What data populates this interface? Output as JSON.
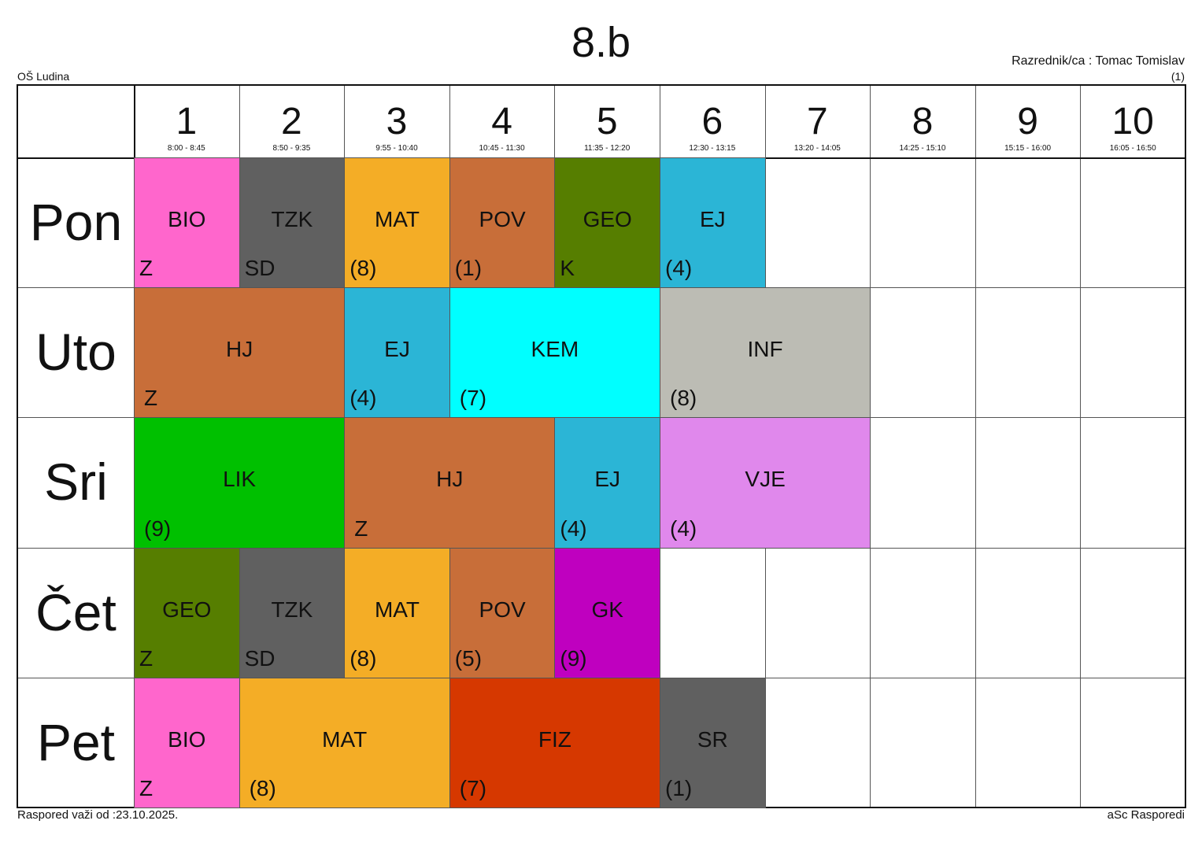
{
  "header": {
    "title": "8.b",
    "school": "OŠ Ludina",
    "teacher": "Razrednik/ca : Tomac Tomislav",
    "page_number": "(1)"
  },
  "footer": {
    "valid_from": "Raspored važi od :23.10.2025.",
    "software": "aSc Rasporedi"
  },
  "periods": [
    {
      "number": "1",
      "time": "8:00 - 8:45"
    },
    {
      "number": "2",
      "time": "8:50 - 9:35"
    },
    {
      "number": "3",
      "time": "9:55 - 10:40"
    },
    {
      "number": "4",
      "time": "10:45 - 11:30"
    },
    {
      "number": "5",
      "time": "11:35 - 12:20"
    },
    {
      "number": "6",
      "time": "12:30 - 13:15"
    },
    {
      "number": "7",
      "time": "13:20 - 14:05"
    },
    {
      "number": "8",
      "time": "14:25 - 15:10"
    },
    {
      "number": "9",
      "time": "15:15 - 16:00"
    },
    {
      "number": "10",
      "time": "16:05 - 16:50"
    }
  ],
  "days": [
    "Pon",
    "Uto",
    "Sri",
    "Čet",
    "Pet"
  ],
  "lessons": [
    {
      "day": 0,
      "start": 1,
      "span": 1,
      "subject": "BIO",
      "room": "Z",
      "color": "#ff66cc"
    },
    {
      "day": 0,
      "start": 2,
      "span": 1,
      "subject": "TZK",
      "room": "SD",
      "color": "#606060"
    },
    {
      "day": 0,
      "start": 3,
      "span": 1,
      "subject": "MAT",
      "room": "(8)",
      "color": "#f4ad26"
    },
    {
      "day": 0,
      "start": 4,
      "span": 1,
      "subject": "POV",
      "room": "(1)",
      "color": "#c86e39"
    },
    {
      "day": 0,
      "start": 5,
      "span": 1,
      "subject": "GEO",
      "room": "K",
      "color": "#567e00"
    },
    {
      "day": 0,
      "start": 6,
      "span": 1,
      "subject": "EJ",
      "room": "(4)",
      "color": "#2bb5d6"
    },
    {
      "day": 1,
      "start": 1,
      "span": 2,
      "subject": "HJ",
      "room": "Z",
      "color": "#c86e39"
    },
    {
      "day": 1,
      "start": 3,
      "span": 1,
      "subject": "EJ",
      "room": "(4)",
      "color": "#2bb5d6"
    },
    {
      "day": 1,
      "start": 4,
      "span": 2,
      "subject": "KEM",
      "room": "(7)",
      "color": "#00ffff"
    },
    {
      "day": 1,
      "start": 6,
      "span": 2,
      "subject": "INF",
      "room": "(8)",
      "color": "#bcbcb4"
    },
    {
      "day": 2,
      "start": 1,
      "span": 2,
      "subject": "LIK",
      "room": "(9)",
      "color": "#00c000"
    },
    {
      "day": 2,
      "start": 3,
      "span": 2,
      "subject": "HJ",
      "room": "Z",
      "color": "#c86e39"
    },
    {
      "day": 2,
      "start": 5,
      "span": 1,
      "subject": "EJ",
      "room": "(4)",
      "color": "#2bb5d6"
    },
    {
      "day": 2,
      "start": 6,
      "span": 2,
      "subject": "VJE",
      "room": "(4)",
      "color": "#e088ec"
    },
    {
      "day": 3,
      "start": 1,
      "span": 1,
      "subject": "GEO",
      "room": "Z",
      "color": "#567e00"
    },
    {
      "day": 3,
      "start": 2,
      "span": 1,
      "subject": "TZK",
      "room": "SD",
      "color": "#606060"
    },
    {
      "day": 3,
      "start": 3,
      "span": 1,
      "subject": "MAT",
      "room": "(8)",
      "color": "#f4ad26"
    },
    {
      "day": 3,
      "start": 4,
      "span": 1,
      "subject": "POV",
      "room": "(5)",
      "color": "#c86e39"
    },
    {
      "day": 3,
      "start": 5,
      "span": 1,
      "subject": "GK",
      "room": "(9)",
      "color": "#bf00bf"
    },
    {
      "day": 4,
      "start": 1,
      "span": 1,
      "subject": "BIO",
      "room": "Z",
      "color": "#ff66cc"
    },
    {
      "day": 4,
      "start": 2,
      "span": 2,
      "subject": "MAT",
      "room": "(8)",
      "color": "#f4ad26"
    },
    {
      "day": 4,
      "start": 4,
      "span": 2,
      "subject": "FIZ",
      "room": "(7)",
      "color": "#d63800"
    },
    {
      "day": 4,
      "start": 6,
      "span": 1,
      "subject": "SR",
      "room": "(1)",
      "color": "#606060"
    }
  ]
}
